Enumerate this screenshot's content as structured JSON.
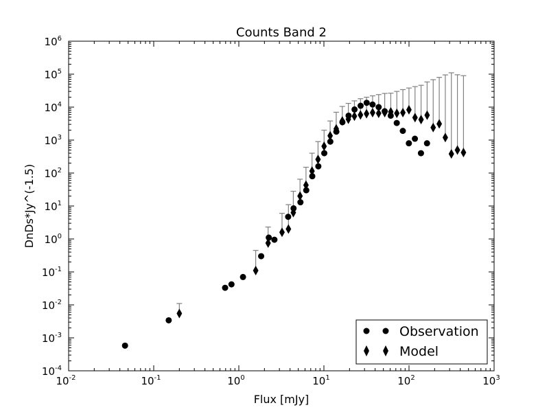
{
  "chart_data": {
    "type": "scatter",
    "title": "Counts Band 2",
    "xlabel": "Flux [mJy]",
    "ylabel": "DnDs*Jy^(-1.5)",
    "xscale": "log",
    "yscale": "log",
    "xlim": [
      0.01,
      1000
    ],
    "ylim": [
      0.0001,
      1000000
    ],
    "x_ticks": [
      {
        "value": 0.01,
        "base": "10",
        "exp": "-2"
      },
      {
        "value": 0.1,
        "base": "10",
        "exp": "-1"
      },
      {
        "value": 1,
        "base": "10",
        "exp": "0"
      },
      {
        "value": 10,
        "base": "10",
        "exp": "1"
      },
      {
        "value": 100,
        "base": "10",
        "exp": "2"
      },
      {
        "value": 1000,
        "base": "10",
        "exp": "3"
      }
    ],
    "y_ticks": [
      {
        "value": 0.0001,
        "base": "10",
        "exp": "-4"
      },
      {
        "value": 0.001,
        "base": "10",
        "exp": "-3"
      },
      {
        "value": 0.01,
        "base": "10",
        "exp": "-2"
      },
      {
        "value": 0.1,
        "base": "10",
        "exp": "-1"
      },
      {
        "value": 1,
        "base": "10",
        "exp": "0"
      },
      {
        "value": 10,
        "base": "10",
        "exp": "1"
      },
      {
        "value": 100,
        "base": "10",
        "exp": "2"
      },
      {
        "value": 1000,
        "base": "10",
        "exp": "3"
      },
      {
        "value": 10000,
        "base": "10",
        "exp": "4"
      },
      {
        "value": 100000,
        "base": "10",
        "exp": "5"
      },
      {
        "value": 1000000,
        "base": "10",
        "exp": "6"
      }
    ],
    "grid": false,
    "legend_position": "bottom-right",
    "colors": {
      "markers": "#000000",
      "errorbars": "#808080"
    },
    "series": [
      {
        "name": "Observation",
        "marker": "circle",
        "x": [
          0.046,
          0.15,
          0.69,
          0.82,
          1.12,
          1.83,
          2.25,
          2.62,
          3.8,
          4.4,
          5.3,
          6.2,
          7.3,
          8.6,
          10.1,
          11.9,
          14.0,
          16.5,
          19.5,
          22.9,
          27.0,
          31.8,
          37.3,
          44.0,
          51.8,
          61.0,
          71.8,
          84.6,
          99.6,
          117.3,
          138.2,
          162.8
        ],
        "y": [
          0.00058,
          0.0034,
          0.033,
          0.042,
          0.07,
          0.3,
          1.1,
          0.95,
          4.7,
          8.5,
          13,
          30,
          80,
          160,
          400,
          900,
          1800,
          3500,
          5500,
          8500,
          11000,
          13500,
          12000,
          10000,
          7500,
          5500,
          3300,
          1900,
          800,
          1100,
          400,
          800
        ]
      },
      {
        "name": "Model",
        "marker": "diamond",
        "x": [
          0.2,
          1.58,
          2.21,
          3.22,
          3.83,
          4.37,
          5.24,
          6.16,
          7.25,
          8.53,
          10.05,
          11.84,
          13.96,
          16.45,
          19.38,
          22.83,
          26.9,
          31.69,
          37.34,
          44.0,
          51.84,
          61.07,
          71.95,
          84.77,
          99.88,
          117.7,
          138.6,
          163.3,
          192.4,
          226.7,
          267.1,
          314.7,
          370.8,
          436.8
        ],
        "y": [
          0.0055,
          0.11,
          0.75,
          1.6,
          2.0,
          6.3,
          20,
          43,
          115,
          260,
          650,
          1350,
          2200,
          3800,
          4300,
          5300,
          5800,
          6300,
          6800,
          6500,
          6800,
          7200,
          6500,
          6800,
          8300,
          4800,
          4200,
          5700,
          2400,
          3100,
          1200,
          380,
          500,
          420
        ],
        "err_hi": [
          0.011,
          0.45,
          2.3,
          6.0,
          11,
          28,
          65,
          150,
          400,
          900,
          2000,
          3800,
          7000,
          10500,
          13000,
          15500,
          18000,
          20000,
          22000,
          24000,
          26000,
          26500,
          30000,
          34000,
          38000,
          42000,
          46000,
          58000,
          68000,
          80000,
          95000,
          110000,
          96000,
          90000
        ]
      }
    ]
  }
}
